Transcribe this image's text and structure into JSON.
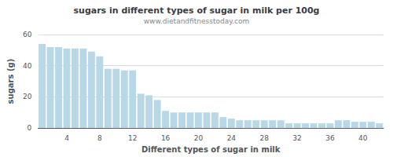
{
  "chart_data": {
    "type": "bar",
    "title": "sugars in different types of sugar in milk per 100g",
    "subtitle": "www.dietandfitnesstoday.com",
    "xlabel": "Different types of sugar in milk",
    "ylabel": "sugars (g)",
    "categories": [
      null,
      null,
      null,
      "4",
      null,
      null,
      null,
      "8",
      null,
      null,
      null,
      "12",
      null,
      null,
      null,
      "16",
      null,
      null,
      null,
      "20",
      null,
      null,
      null,
      "24",
      null,
      null,
      null,
      "28",
      null,
      null,
      null,
      "32",
      null,
      null,
      null,
      "36",
      null,
      null,
      null,
      "40",
      null,
      null
    ],
    "values": [
      54,
      52,
      52,
      51,
      51,
      51,
      49,
      46,
      38,
      38,
      37,
      37,
      22,
      21,
      18,
      11,
      10,
      10,
      10,
      10,
      10,
      10,
      7,
      6,
      5,
      5,
      5,
      5,
      5,
      5,
      3,
      3,
      3,
      3,
      3,
      3,
      5,
      5,
      4,
      4,
      4,
      3
    ],
    "color": "#b8d8e8",
    "ylim": [
      0,
      60
    ],
    "yticks": [
      0,
      20,
      40,
      60
    ],
    "grid": true
  }
}
